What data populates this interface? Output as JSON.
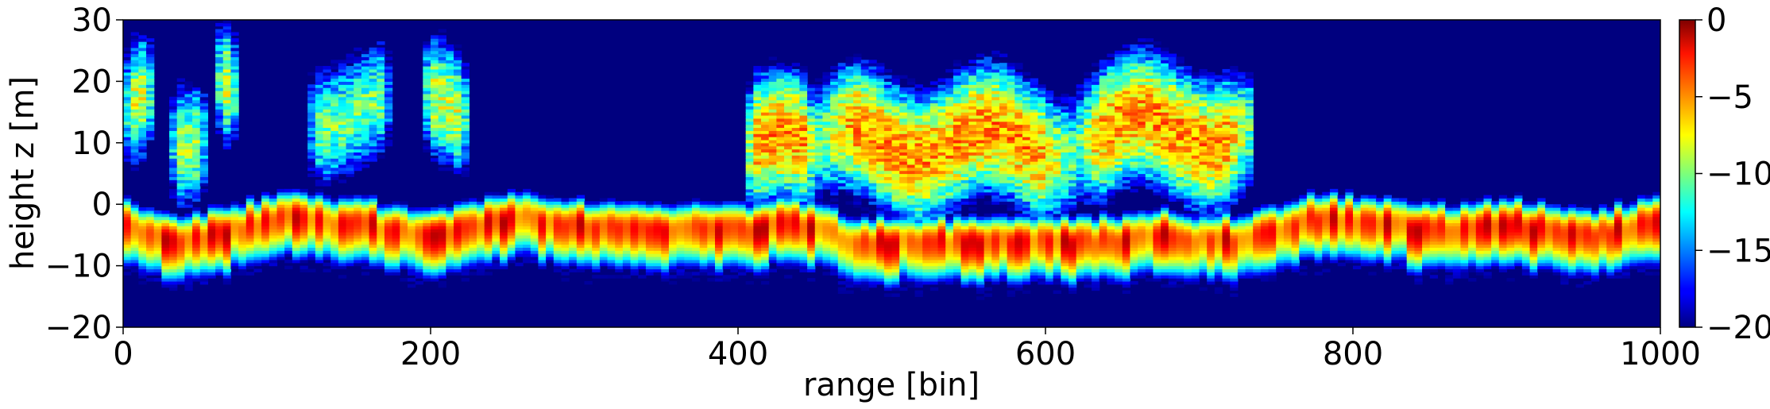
{
  "chart_data": {
    "type": "heatmap",
    "title": "",
    "xlabel": "range [bin]",
    "ylabel": "height z [m]",
    "xlim": [
      0,
      1000
    ],
    "ylim": [
      -20,
      30
    ],
    "x_ticks": [
      0,
      200,
      400,
      600,
      800,
      1000
    ],
    "y_ticks": [
      -20,
      -10,
      0,
      10,
      20,
      30
    ],
    "x_tick_labels": [
      "0",
      "200",
      "400",
      "600",
      "800",
      "1000"
    ],
    "y_tick_labels": [
      "−20",
      "−10",
      "0",
      "10",
      "20",
      "30"
    ],
    "colormap": "jet",
    "colorbar": {
      "range": [
        -20,
        0
      ],
      "ticks": [
        0,
        -5,
        -10,
        -15,
        -20
      ],
      "tick_labels": [
        "0",
        "−5",
        "−10",
        "−15",
        "−20"
      ]
    },
    "background_value": -20,
    "ground_layer": {
      "description": "strong return near ground surface",
      "height_points": [
        [
          0,
          -3
        ],
        [
          30,
          -6
        ],
        [
          60,
          -5
        ],
        [
          100,
          -2
        ],
        [
          150,
          -3
        ],
        [
          200,
          -5
        ],
        [
          230,
          -3
        ],
        [
          260,
          -2
        ],
        [
          280,
          -3
        ],
        [
          320,
          -4
        ],
        [
          360,
          -4
        ],
        [
          400,
          -4
        ],
        [
          440,
          -3
        ],
        [
          480,
          -6
        ],
        [
          560,
          -6
        ],
        [
          620,
          -6
        ],
        [
          680,
          -5
        ],
        [
          720,
          -6
        ],
        [
          745,
          -4
        ],
        [
          780,
          -2
        ],
        [
          850,
          -4
        ],
        [
          900,
          -3
        ],
        [
          950,
          -5
        ],
        [
          1000,
          -3
        ]
      ],
      "peak_value": -1
    },
    "canopy_layers": [
      {
        "x": [
          0,
          20
        ],
        "z_center": 16,
        "peak": -6
      },
      {
        "x": [
          30,
          55
        ],
        "z_center": 12,
        "peak": -7
      },
      {
        "x": [
          60,
          75
        ],
        "z_center": 18,
        "peak": -6
      },
      {
        "x": [
          120,
          175
        ],
        "z_center": 15,
        "peak": -8
      },
      {
        "x": [
          195,
          225
        ],
        "z_center": 16,
        "peak": -6
      },
      {
        "x": [
          405,
          450
        ],
        "z_center": 9,
        "peak": -3
      },
      {
        "x": [
          450,
          620
        ],
        "z_center": 10,
        "peak": -3
      },
      {
        "x": [
          620,
          735
        ],
        "z_center": 12,
        "peak": -3
      }
    ]
  }
}
